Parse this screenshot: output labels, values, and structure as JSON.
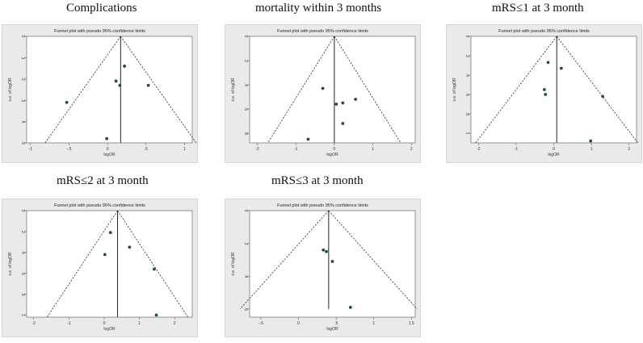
{
  "chart_data": [
    {
      "type": "scatter",
      "title": "Complications",
      "subtitle": "Funnel plot with pseudo 95% confidence limits",
      "xlabel": "logOR",
      "ylabel": "s.e. of logOR",
      "xlim": [
        -1.05,
        1.1
      ],
      "ylim": [
        0,
        0.5
      ],
      "y_inverted": true,
      "xticks": [
        -1,
        -0.5,
        0,
        0.5,
        1
      ],
      "xtick_labels": [
        "-1",
        "-.5",
        "0",
        ".5",
        "1"
      ],
      "yticks": [
        0,
        0.1,
        0.2,
        0.3,
        0.4,
        0.5
      ],
      "ytick_labels": [
        "0",
        ".1",
        ".2",
        ".3",
        ".4",
        ".5"
      ],
      "pooled_logOR": 0.17,
      "se_max": 0.5,
      "points": [
        {
          "x": 0.22,
          "y": 0.14
        },
        {
          "x": 0.11,
          "y": 0.21
        },
        {
          "x": 0.16,
          "y": 0.23
        },
        {
          "x": 0.53,
          "y": 0.23
        },
        {
          "x": -0.53,
          "y": 0.31
        },
        {
          "x": -0.01,
          "y": 0.48
        }
      ]
    },
    {
      "type": "scatter",
      "title": "mortality within 3 months",
      "subtitle": "Funnel plot with pseudo 95% confidence limits",
      "xlabel": "logOR",
      "ylabel": "s.e. of logOR",
      "xlim": [
        -2.2,
        2.1
      ],
      "ylim": [
        0,
        0.88
      ],
      "y_inverted": true,
      "xticks": [
        -2,
        -1,
        0,
        1,
        2
      ],
      "xtick_labels": [
        "-2",
        "-1",
        "0",
        "1",
        "2"
      ],
      "yticks": [
        0,
        0.2,
        0.4,
        0.6,
        0.8
      ],
      "ytick_labels": [
        "0",
        ".2",
        ".4",
        ".6",
        ".8"
      ],
      "pooled_logOR": 0.0,
      "se_max": 0.88,
      "points": [
        {
          "x": -0.3,
          "y": 0.43
        },
        {
          "x": 0.55,
          "y": 0.52
        },
        {
          "x": 0.22,
          "y": 0.55
        },
        {
          "x": 0.05,
          "y": 0.56
        },
        {
          "x": 0.22,
          "y": 0.72
        },
        {
          "x": -0.68,
          "y": 0.85
        }
      ]
    },
    {
      "type": "scatter",
      "title": "mRS≤1 at 3 month",
      "subtitle": "Funnel plot with pseudo 95% confidence limits",
      "xlabel": "logOR",
      "ylabel": "s.e. of logOR",
      "xlim": [
        -2.2,
        2.2
      ],
      "ylim": [
        0,
        1.1
      ],
      "y_inverted": true,
      "xticks": [
        -2,
        -1,
        0,
        1,
        2
      ],
      "xtick_labels": [
        "-2",
        "-1",
        "0",
        "1",
        "2"
      ],
      "yticks": [
        0,
        0.2,
        0.4,
        0.6,
        0.8,
        1.0
      ],
      "ytick_labels": [
        "0",
        ".2",
        ".4",
        ".6",
        ".8",
        "1"
      ],
      "pooled_logOR": 0.08,
      "se_max": 1.1,
      "points": [
        {
          "x": -0.15,
          "y": 0.27
        },
        {
          "x": 0.2,
          "y": 0.33
        },
        {
          "x": -0.25,
          "y": 0.55
        },
        {
          "x": -0.22,
          "y": 0.6
        },
        {
          "x": 1.3,
          "y": 0.62
        },
        {
          "x": 0.98,
          "y": 1.08
        }
      ]
    },
    {
      "type": "scatter",
      "title": "mRS≤2 at 3 month",
      "subtitle": "Funnel plot with pseudo 95% confidence limits",
      "xlabel": "logOR",
      "ylabel": "s.e. of logOR",
      "xlim": [
        -2.2,
        2.5
      ],
      "ylim": [
        0,
        1.02
      ],
      "y_inverted": true,
      "xticks": [
        -2,
        -1,
        0,
        1,
        2
      ],
      "xtick_labels": [
        "-2",
        "-1",
        "0",
        "1",
        "2"
      ],
      "yticks": [
        0,
        0.2,
        0.4,
        0.6,
        0.8,
        1.0
      ],
      "ytick_labels": [
        "0",
        ".2",
        ".4",
        ".6",
        ".8",
        "1"
      ],
      "pooled_logOR": 0.38,
      "se_max": 1.02,
      "points": [
        {
          "x": 0.18,
          "y": 0.21
        },
        {
          "x": 0.72,
          "y": 0.35
        },
        {
          "x": 0.02,
          "y": 0.42
        },
        {
          "x": 1.42,
          "y": 0.56
        },
        {
          "x": 1.48,
          "y": 1.0
        }
      ]
    },
    {
      "type": "scatter",
      "title": "mRS≤3 at 3 month",
      "subtitle": "Funnel plot with pseudo 95% confidence limits",
      "xlabel": "logOR",
      "ylabel": "s.e. of logOR",
      "xlim": [
        -0.65,
        1.55
      ],
      "ylim": [
        0,
        0.65
      ],
      "y_inverted": true,
      "xticks": [
        -0.5,
        0,
        0.5,
        1,
        1.5
      ],
      "xtick_labels": [
        "-.5",
        "0",
        ".5",
        "1",
        "1.5"
      ],
      "yticks": [
        0,
        0.2,
        0.4,
        0.6
      ],
      "ytick_labels": [
        "0",
        ".2",
        ".4",
        ".6"
      ],
      "pooled_logOR": 0.4,
      "se_max": 0.6,
      "points": [
        {
          "x": 0.33,
          "y": 0.24
        },
        {
          "x": 0.37,
          "y": 0.25
        },
        {
          "x": 0.45,
          "y": 0.31
        },
        {
          "x": 0.69,
          "y": 0.59
        }
      ]
    }
  ]
}
